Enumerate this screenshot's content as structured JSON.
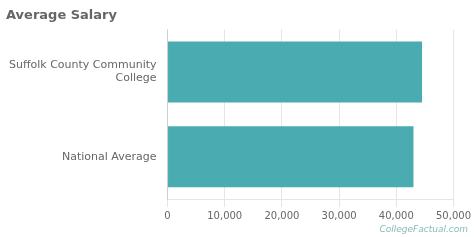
{
  "chart_data": {
    "type": "bar",
    "orientation": "horizontal",
    "title": "Average Salary",
    "categories": [
      "National Average",
      "Suffolk County Community\nCollege"
    ],
    "values": [
      43000,
      44500
    ],
    "color": "#4aacb0",
    "xlim": [
      0,
      50000
    ],
    "xticks": [
      0,
      {
        "value": 10000,
        "label": "10,000"
      },
      {
        "value": 20000,
        "label": "20,000"
      },
      {
        "value": 30000,
        "label": "30,000"
      },
      {
        "value": 40000,
        "label": "40,000"
      },
      {
        "value": 50000,
        "label": "50,000"
      }
    ],
    "grid": true,
    "annotations": [
      "CollegeFactual.com"
    ]
  }
}
